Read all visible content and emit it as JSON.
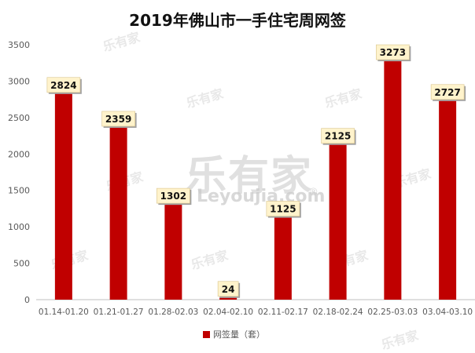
{
  "chart_data": {
    "type": "bar",
    "title": "2019年佛山市一手住宅周网签",
    "categories": [
      "01.14-01.20",
      "01.21-01.27",
      "01.28-02.03",
      "02.04-02.10",
      "02.11-02.17",
      "02.18-02.24",
      "02.25-03.03",
      "03.04-03.10"
    ],
    "series": [
      {
        "name": "网签量（套）",
        "values": [
          2824,
          2359,
          1302,
          24,
          1125,
          2125,
          3273,
          2727
        ]
      }
    ],
    "y_ticks": [
      "0",
      "500",
      "1000",
      "1500",
      "2000",
      "2500",
      "3000",
      "3500"
    ],
    "ylim": [
      0,
      3500
    ],
    "xlabel": "",
    "ylabel": "",
    "grid": false,
    "legend_position": "bottom",
    "bar_color": "#c00000",
    "label_bg_color": "#fff3cc"
  },
  "watermark": {
    "main": "乐有家",
    "sub": "Leyoujia.com",
    "mark": "®",
    "small": "乐有家"
  }
}
